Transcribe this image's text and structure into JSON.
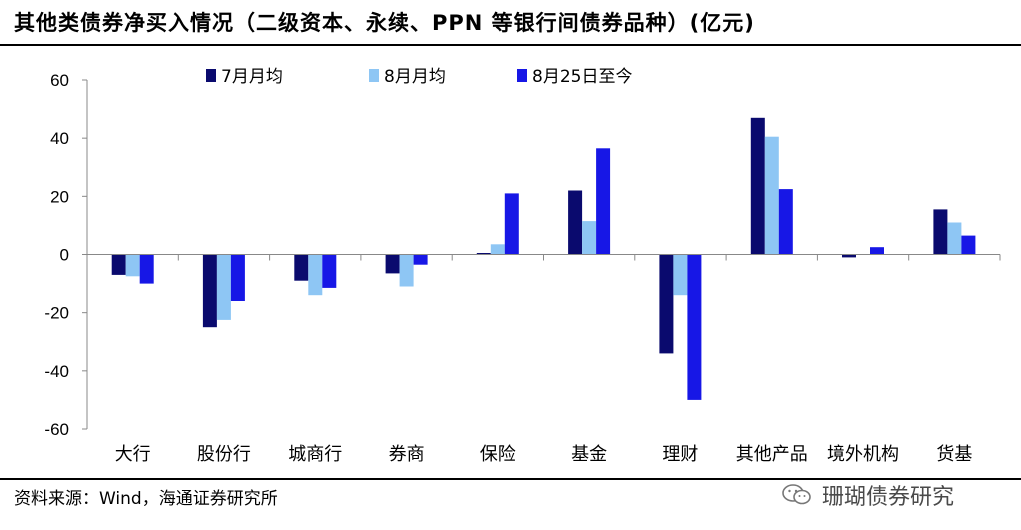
{
  "title": "其他类债券净买入情况（二级资本、永续、PPN 等银行间债券品种）(亿元)",
  "source": "资料来源：Wind，海通证券研究所",
  "watermark": "珊瑚债券研究",
  "colors": {
    "jul": "#0a0a6e",
    "aug": "#8ec6f4",
    "aug25": "#1717e6"
  },
  "chart_data": {
    "type": "bar",
    "categories": [
      "大行",
      "股份行",
      "城商行",
      "券商",
      "保险",
      "基金",
      "理财",
      "其他产品",
      "境外机构",
      "货基"
    ],
    "series": [
      {
        "name": "7月月均",
        "values": [
          -7,
          -25,
          -9,
          -6.5,
          0.5,
          22,
          -34,
          47,
          -1,
          15.5
        ]
      },
      {
        "name": "8月月均",
        "values": [
          -7.5,
          -22.5,
          -14,
          -11,
          3.5,
          11.5,
          -14,
          40.5,
          0,
          11
        ]
      },
      {
        "name": "8月25日至今",
        "values": [
          -10,
          -16,
          -11.5,
          -3.5,
          21,
          36.5,
          -50,
          22.5,
          2.5,
          6.5
        ]
      }
    ],
    "yticks": [
      60,
      40,
      20,
      0,
      -20,
      -40,
      -60
    ],
    "ylim": [
      -60,
      60
    ],
    "legend_position": "top"
  }
}
